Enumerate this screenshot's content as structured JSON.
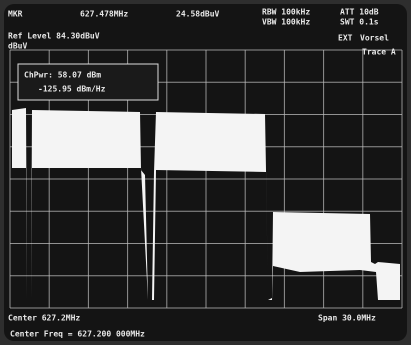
{
  "status_bar": {
    "marker": "MKR",
    "marker_freq": "627.478MHz",
    "marker_level": "24.58dBuV",
    "rbw": "RBW 100kHz",
    "vbw": "VBW 100kHz",
    "att": "ATT 10dB",
    "swt": "SWT 0.1s"
  },
  "ref_bar": {
    "ref_level": "Ref Level 84.30dBuV",
    "ext": "EXT",
    "mode": "Vorsel",
    "trace": "Trace A",
    "unit": "dBuV"
  },
  "marker_box": {
    "line1": "ChPwr: 58.07 dBm",
    "line2": "-125.95 dBm/Hz"
  },
  "footer": {
    "center": "Center 627.2MHz",
    "span": "Span 30.0MHz",
    "center_freq": "Center Freq = 627.200 000MHz"
  }
}
